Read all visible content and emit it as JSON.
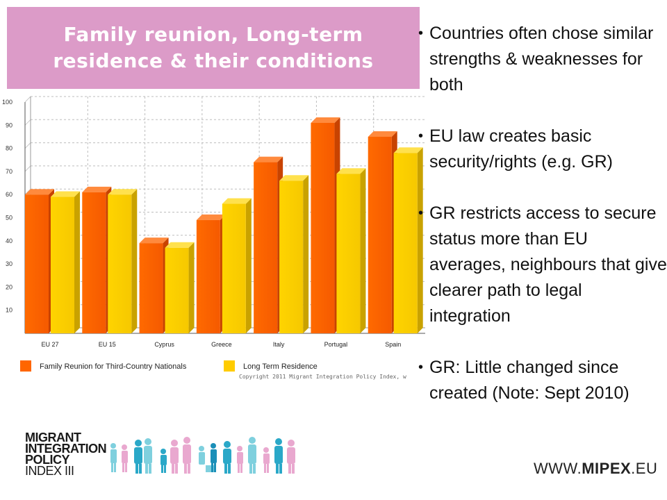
{
  "slide": {
    "title_line1": "Family reunion, Long-term",
    "title_line2": "residence & their conditions",
    "bullets": [
      "Countries often chose similar strengths & weaknesses for both",
      "EU law creates basic security/rights (e.g. GR)",
      "GR restricts access to secure status more than EU averages, neighbours that give clearer path to legal integration",
      "GR: Little changed since created (Note: Sept 2010)"
    ],
    "logo": {
      "line1": "MIGRANT",
      "line2": "INTEGRATION",
      "line3": "POLICY",
      "line4": "INDEX III",
      "url_prefix": "WWW.",
      "url_brand": "MIPEX",
      "url_suffix": ".EU"
    }
  },
  "chart_data": {
    "type": "bar",
    "categories": [
      "EU 27",
      "EU 15",
      "Cyprus",
      "Greece",
      "Italy",
      "Portugal",
      "Spain"
    ],
    "series": [
      {
        "name": "Family Reunion for Third-Country Nationals",
        "values": [
          60,
          61,
          39,
          49,
          74,
          91,
          85
        ],
        "color": "#ff6600"
      },
      {
        "name": "Long Term Residence",
        "values": [
          59,
          60,
          37,
          56,
          66,
          69,
          78
        ],
        "color": "#ffcc00"
      }
    ],
    "ylim": [
      0,
      100
    ],
    "yticks": [
      10,
      20,
      30,
      40,
      50,
      60,
      70,
      80,
      90,
      100
    ],
    "grid": true,
    "legend_position": "bottom",
    "copyright": "Copyright 2011 Migrant Integration Policy Index, w",
    "xlabel": "",
    "ylabel": ""
  }
}
